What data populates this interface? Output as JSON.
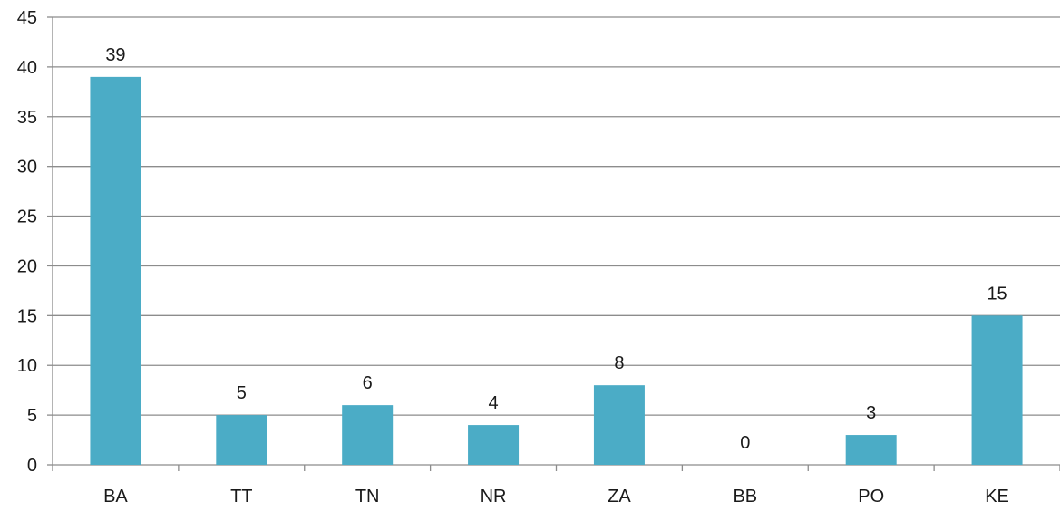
{
  "chart_data": {
    "type": "bar",
    "categories": [
      "BA",
      "TT",
      "TN",
      "NR",
      "ZA",
      "BB",
      "PO",
      "KE"
    ],
    "values": [
      39,
      5,
      6,
      4,
      8,
      0,
      3,
      15
    ],
    "data_labels": [
      "39",
      "5",
      "6",
      "4",
      "8",
      "0",
      "3",
      "15"
    ],
    "y_ticks": [
      0,
      5,
      10,
      15,
      20,
      25,
      30,
      35,
      40,
      45
    ],
    "y_tick_labels": [
      "0",
      "5",
      "10",
      "15",
      "20",
      "25",
      "30",
      "35",
      "40",
      "45"
    ],
    "ylim": [
      0,
      45
    ],
    "grid": true,
    "legend": "none",
    "title": "",
    "xlabel": "",
    "ylabel": "",
    "colors": {
      "bar": "#4bacc6",
      "grid": "#8c8c8c",
      "axis": "#8c8c8c"
    }
  }
}
